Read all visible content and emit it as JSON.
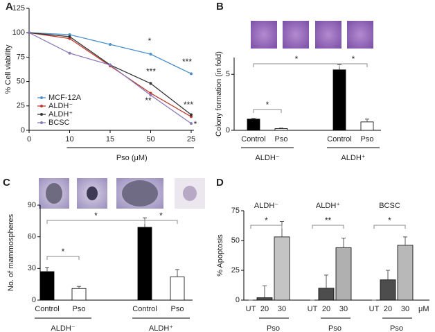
{
  "chart_data": [
    {
      "type": "line",
      "panel": "A",
      "categories": [
        "0",
        "10",
        "15",
        "50",
        "25"
      ],
      "xlabel": "Pso (μM)",
      "ylabel": "% Cell viability",
      "ylim": [
        0,
        125
      ],
      "yticks": [
        0,
        25,
        50,
        75,
        100,
        125
      ],
      "series": [
        {
          "name": "MCF-12A",
          "color": "#4a8fc9",
          "values": [
            100,
            98,
            88,
            78,
            58
          ]
        },
        {
          "name": "ALDH⁻",
          "color": "#c0392b",
          "values": [
            100,
            94,
            66,
            38,
            14
          ]
        },
        {
          "name": "ALDH⁺",
          "color": "#333333",
          "values": [
            100,
            96,
            67,
            48,
            16
          ]
        },
        {
          "name": "BCSC",
          "color": "#8a7ab8",
          "values": [
            100,
            79,
            67,
            36,
            7
          ]
        }
      ],
      "annotations": [
        "*",
        "***",
        "***",
        "**",
        "***",
        "*"
      ]
    },
    {
      "type": "bar",
      "panel": "B",
      "categories": [
        "Control",
        "Pso",
        "Control",
        "Pso"
      ],
      "groups": [
        "ALDH⁻",
        "ALDH⁺"
      ],
      "ylabel": "Colony formation (in fold)",
      "ylim": [
        0,
        6.5
      ],
      "yticks": [
        0,
        5
      ],
      "values": [
        1.0,
        0.15,
        5.4,
        0.75
      ],
      "errors": [
        0.08,
        0.05,
        0.45,
        0.25
      ],
      "colors": [
        "#000000",
        "#ffffff",
        "#000000",
        "#ffffff"
      ],
      "annotations": [
        "*",
        "*",
        "*"
      ]
    },
    {
      "type": "bar",
      "panel": "C",
      "categories": [
        "Control",
        "Pso",
        "Control",
        "Pso"
      ],
      "groups": [
        "ALDH⁻",
        "ALDH⁺"
      ],
      "ylabel": "No. of mammospheres",
      "ylim": [
        0,
        90
      ],
      "yticks": [
        0,
        30,
        60,
        90
      ],
      "values": [
        27,
        11,
        69,
        22
      ],
      "errors": [
        4,
        2,
        9,
        7
      ],
      "colors": [
        "#000000",
        "#ffffff",
        "#000000",
        "#ffffff"
      ],
      "annotations": [
        "*",
        "*",
        "*"
      ]
    },
    {
      "type": "bar",
      "panel": "D",
      "categories": [
        "UT",
        "20",
        "30",
        "UT",
        "20",
        "30",
        "UT",
        "20",
        "30"
      ],
      "groups": [
        "ALDH⁻",
        "ALDH⁺",
        "BCSC"
      ],
      "xlabel": "Pso",
      "unit": "μM",
      "ylabel": "% Apoptosis",
      "ylim": [
        0,
        75
      ],
      "yticks": [
        0,
        25,
        50,
        75
      ],
      "values": [
        0,
        2,
        53,
        0,
        10,
        44,
        0,
        17,
        46
      ],
      "errors": [
        0,
        10,
        13,
        0,
        11,
        8,
        0,
        8,
        7
      ],
      "colors": [
        "#4d4d4d",
        "#4d4d4d",
        "#c4c4c4",
        "#4d4d4d",
        "#4d4d4d",
        "#b0b0b0",
        "#4d4d4d",
        "#4d4d4d",
        "#b8b8b8"
      ],
      "annotations": [
        "*",
        "**",
        "*"
      ]
    }
  ]
}
